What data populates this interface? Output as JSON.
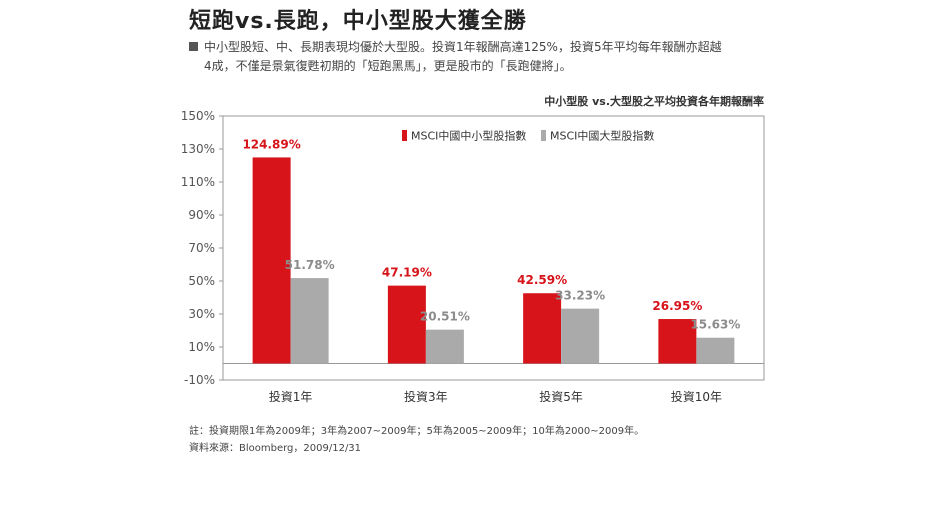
{
  "headline": "短跑vs.長跑，中小型股大獲全勝",
  "intro": {
    "line1": "中小型股短、中、長期表現均優於大型股。投資1年報酬高達125%，投資5年平均每年報酬亦超越",
    "line2": "4成，不僅是景氣復甦初期的「短跑黑馬」，更是股市的「長跑健將」。"
  },
  "colors": {
    "series1": "#d7141a",
    "series2": "#aaaaaa",
    "label1": "#d7141a",
    "label2": "#8c8c8c"
  },
  "chart_data": {
    "type": "bar",
    "title": "中小型股 vs.大型股之平均投資各年期報酬率",
    "categories": [
      "投資1年",
      "投資3年",
      "投資5年",
      "投資10年"
    ],
    "series": [
      {
        "name": "MSCI中國中小型股指數",
        "values": [
          124.89,
          47.19,
          42.59,
          26.95
        ],
        "labels": [
          "124.89%",
          "47.19%",
          "42.59%",
          "26.95%"
        ]
      },
      {
        "name": "MSCI中國大型股指數",
        "values": [
          51.78,
          20.51,
          33.23,
          15.63
        ],
        "labels": [
          "51.78%",
          "20.51%",
          "33.23%",
          "15.63%"
        ]
      }
    ],
    "yticks": [
      150,
      130,
      110,
      90,
      70,
      50,
      30,
      10,
      -10
    ],
    "ytick_labels": [
      "150%",
      "130%",
      "110%",
      "90%",
      "70%",
      "50%",
      "30%",
      "10%",
      "-10%"
    ],
    "ylim": [
      -10,
      150
    ],
    "baseline": 0,
    "grid": false,
    "legend_position": "top-center"
  },
  "footnotes": {
    "note": "註：投資期限1年為2009年；3年為2007~2009年；5年為2005~2009年；10年為2000~2009年。",
    "source": "資料來源：Bloomberg，2009/12/31"
  }
}
